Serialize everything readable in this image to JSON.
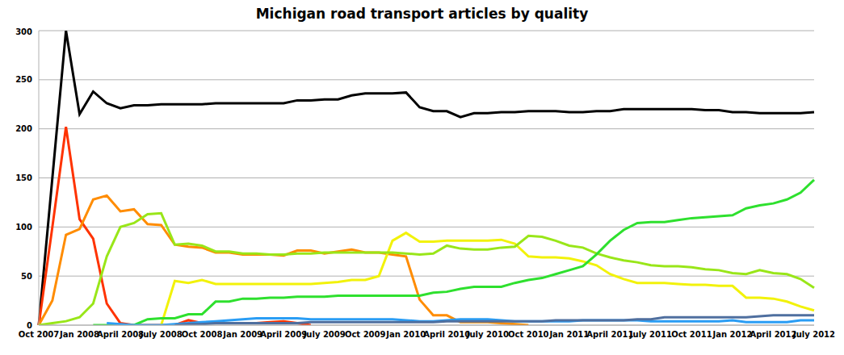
{
  "chart_data": {
    "type": "line",
    "title": "Michigan road transport articles by quality",
    "categories": [
      "Oct 2007",
      null,
      null,
      "Jan 2008",
      null,
      null,
      "April 2008",
      null,
      null,
      "July 2008",
      null,
      null,
      "Oct 2008",
      null,
      null,
      "Jan 2009",
      null,
      null,
      "April 2009",
      null,
      null,
      "July 2009",
      null,
      null,
      "Oct 2009",
      null,
      null,
      "Jan 2010",
      null,
      null,
      "April 2010",
      null,
      null,
      "July 2010",
      null,
      null,
      "Oct 2010",
      null,
      null,
      "Jan 2011",
      null,
      null,
      "April 2011",
      null,
      null,
      "July 2011",
      null,
      null,
      "Oct 2011",
      null,
      null,
      "Jan 2012",
      null,
      null,
      "April 2012",
      null,
      null,
      "July 2012"
    ],
    "ylim": [
      0,
      300
    ],
    "yticks": [
      0,
      50,
      100,
      150,
      200,
      250,
      300
    ],
    "grid": true,
    "series": [
      {
        "color": "#000000",
        "values": [
          0,
          150,
          300,
          215,
          238,
          226,
          221,
          224,
          224,
          225,
          225,
          225,
          225,
          226,
          226,
          226,
          226,
          226,
          226,
          229,
          229,
          230,
          230,
          234,
          236,
          236,
          236,
          237,
          222,
          218,
          218,
          212,
          216,
          216,
          217,
          217,
          218,
          218,
          218,
          217,
          217,
          218,
          218,
          220,
          220,
          220,
          220,
          220,
          220,
          219,
          219,
          217,
          217,
          216,
          216,
          216,
          216,
          217
        ]
      },
      {
        "color": "#ff3300",
        "values": [
          0,
          100,
          202,
          108,
          88,
          22,
          2,
          0,
          0,
          0,
          0,
          5,
          2,
          2,
          2,
          2,
          2,
          3,
          4,
          2,
          0,
          null,
          null,
          null,
          null,
          null,
          null,
          null,
          null,
          null,
          null,
          null,
          null,
          null,
          null,
          null,
          null,
          null,
          null,
          null,
          null,
          null,
          null,
          null,
          null,
          null,
          null,
          null,
          null,
          null,
          null,
          null,
          null,
          null,
          null,
          null,
          null,
          null
        ]
      },
      {
        "color": "#ff8c00",
        "values": [
          0,
          25,
          92,
          98,
          128,
          132,
          116,
          118,
          103,
          102,
          82,
          80,
          79,
          74,
          74,
          72,
          72,
          72,
          71,
          76,
          76,
          73,
          75,
          77,
          74,
          74,
          72,
          70,
          26,
          10,
          10,
          3,
          3,
          3,
          2,
          1,
          0,
          null,
          null,
          null,
          null,
          null,
          null,
          null,
          null,
          null,
          null,
          null,
          null,
          null,
          null,
          null,
          null,
          null,
          null,
          null,
          null,
          null
        ]
      },
      {
        "color": "#f2f20a",
        "values": [
          null,
          null,
          null,
          null,
          null,
          null,
          null,
          null,
          null,
          0,
          45,
          43,
          46,
          42,
          42,
          42,
          42,
          42,
          42,
          42,
          42,
          43,
          44,
          46,
          46,
          50,
          86,
          94,
          85,
          85,
          86,
          86,
          86,
          86,
          87,
          83,
          70,
          69,
          69,
          68,
          65,
          61,
          52,
          47,
          43,
          43,
          43,
          42,
          41,
          41,
          40,
          40,
          28,
          28,
          27,
          24,
          19,
          15
        ]
      },
      {
        "color": "#99e619",
        "values": [
          0,
          2,
          4,
          8,
          22,
          70,
          100,
          104,
          113,
          114,
          82,
          83,
          81,
          75,
          75,
          73,
          73,
          72,
          72,
          73,
          73,
          74,
          74,
          74,
          74,
          74,
          74,
          73,
          72,
          73,
          81,
          78,
          77,
          77,
          79,
          80,
          91,
          90,
          86,
          81,
          79,
          73,
          69,
          66,
          64,
          61,
          60,
          60,
          59,
          57,
          56,
          53,
          52,
          56,
          53,
          52,
          47,
          38
        ]
      },
      {
        "color": "#2ee02e",
        "values": [
          null,
          null,
          null,
          null,
          0,
          0,
          0,
          0,
          6,
          7,
          7,
          11,
          11,
          24,
          24,
          27,
          27,
          28,
          28,
          29,
          29,
          29,
          30,
          30,
          30,
          30,
          30,
          30,
          30,
          33,
          34,
          37,
          39,
          39,
          39,
          43,
          46,
          48,
          52,
          56,
          60,
          72,
          86,
          97,
          104,
          105,
          105,
          107,
          109,
          110,
          111,
          112,
          119,
          122,
          124,
          128,
          135,
          148
        ]
      },
      {
        "color": "#2a9df4",
        "values": [
          null,
          null,
          null,
          null,
          null,
          2,
          1,
          0,
          0,
          0,
          1,
          2,
          3,
          4,
          5,
          6,
          7,
          7,
          7,
          7,
          6,
          6,
          6,
          6,
          6,
          6,
          6,
          5,
          4,
          4,
          5,
          6,
          6,
          6,
          5,
          4,
          4,
          4,
          4,
          4,
          5,
          5,
          5,
          5,
          5,
          4,
          4,
          4,
          4,
          4,
          4,
          5,
          3,
          3,
          3,
          3,
          5,
          5
        ]
      },
      {
        "color": "#4f6f9f",
        "values": [
          null,
          null,
          null,
          null,
          null,
          null,
          null,
          null,
          null,
          null,
          0,
          1,
          1,
          2,
          2,
          2,
          2,
          2,
          2,
          2,
          3,
          3,
          3,
          3,
          3,
          3,
          3,
          3,
          3,
          3,
          4,
          4,
          4,
          4,
          4,
          4,
          4,
          4,
          5,
          5,
          5,
          5,
          5,
          5,
          6,
          6,
          8,
          8,
          8,
          8,
          8,
          8,
          8,
          9,
          10,
          10,
          10,
          10
        ]
      }
    ]
  }
}
